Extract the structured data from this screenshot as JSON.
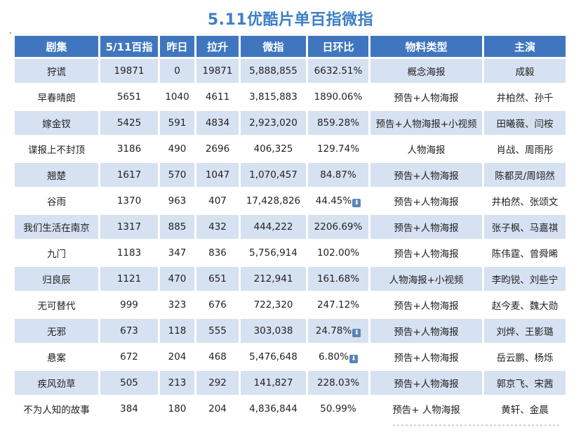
{
  "title": "5.11优酷片单百指微指",
  "headers": [
    "剧集",
    "5/11百指",
    "昨日",
    "拉升",
    "微指",
    "日环比",
    "物料类型",
    "主演"
  ],
  "rows": [
    {
      "drama": "狩谎",
      "index": "19871",
      "yesterday": "0",
      "rise": "19871",
      "weibo": "5,888,855",
      "dod": "6632.51%",
      "dod_down": false,
      "material": "概念海报",
      "cast": "成毅"
    },
    {
      "drama": "早春晴朗",
      "index": "5651",
      "yesterday": "1040",
      "rise": "4611",
      "weibo": "3,815,883",
      "dod": "1890.06%",
      "dod_down": false,
      "material": "预告+人物海报",
      "cast": "井柏然、孙千"
    },
    {
      "drama": "嫁金钗",
      "index": "5425",
      "yesterday": "591",
      "rise": "4834",
      "weibo": "2,923,020",
      "dod": "859.28%",
      "dod_down": false,
      "material": "预告+人物海报+小视频",
      "cast": "田曦薇、闫桉"
    },
    {
      "drama": "谍报上不封顶",
      "index": "3186",
      "yesterday": "490",
      "rise": "2696",
      "weibo": "406,325",
      "dod": "129.74%",
      "dod_down": false,
      "material": "人物海报",
      "cast": "肖战、周雨彤"
    },
    {
      "drama": "翘楚",
      "index": "1617",
      "yesterday": "570",
      "rise": "1047",
      "weibo": "1,070,457",
      "dod": "84.87%",
      "dod_down": false,
      "material": "预告+人物海报",
      "cast": "陈都灵/周翊然"
    },
    {
      "drama": "谷雨",
      "index": "1370",
      "yesterday": "963",
      "rise": "407",
      "weibo": "17,428,826",
      "dod": "44.45%",
      "dod_down": true,
      "material": "预告+人物海报",
      "cast": "井柏然、张颂文"
    },
    {
      "drama": "我们生活在南京",
      "index": "1317",
      "yesterday": "885",
      "rise": "432",
      "weibo": "444,222",
      "dod": "2206.69%",
      "dod_down": false,
      "material": "预告+人物海报",
      "cast": "张子枫、马嘉祺"
    },
    {
      "drama": "九门",
      "index": "1183",
      "yesterday": "347",
      "rise": "836",
      "weibo": "5,756,914",
      "dod": "102.00%",
      "dod_down": false,
      "material": "预告+人物海报",
      "cast": "陈伟霆、曾舜晞"
    },
    {
      "drama": "归良辰",
      "index": "1121",
      "yesterday": "470",
      "rise": "651",
      "weibo": "212,941",
      "dod": "161.68%",
      "dod_down": false,
      "material": "人物海报+小视频",
      "cast": "李昀锐、刘些宁"
    },
    {
      "drama": "无可替代",
      "index": "999",
      "yesterday": "323",
      "rise": "676",
      "weibo": "722,320",
      "dod": "247.12%",
      "dod_down": false,
      "material": "预告+人物海报",
      "cast": "赵今麦、魏大勋"
    },
    {
      "drama": "无邪",
      "index": "673",
      "yesterday": "118",
      "rise": "555",
      "weibo": "303,038",
      "dod": "24.78%",
      "dod_down": true,
      "material": "预告+人物海报",
      "cast": "刘烨、王影璐"
    },
    {
      "drama": "悬案",
      "index": "672",
      "yesterday": "204",
      "rise": "468",
      "weibo": "5,476,648",
      "dod": "6.80%",
      "dod_down": true,
      "material": "预告+人物海报",
      "cast": "岳云鹏、杨烁"
    },
    {
      "drama": "疾风劲草",
      "index": "505",
      "yesterday": "213",
      "rise": "292",
      "weibo": "141,827",
      "dod": "228.03%",
      "dod_down": false,
      "material": "预告+人物海报",
      "cast": "郭京飞、宋茜"
    },
    {
      "drama": "不为人知的故事",
      "index": "384",
      "yesterday": "180",
      "rise": "204",
      "weibo": "4,836,844",
      "dod": "50.99%",
      "dod_down": false,
      "material": "预告+ 人物海报",
      "cast": "黄轩、金晨"
    }
  ],
  "icons": {
    "down_arrow": "down-arrow-icon"
  },
  "colors": {
    "title": "#3d7fc6",
    "header_bg": "#3f76bf",
    "stripe": "#d6e1f1"
  }
}
